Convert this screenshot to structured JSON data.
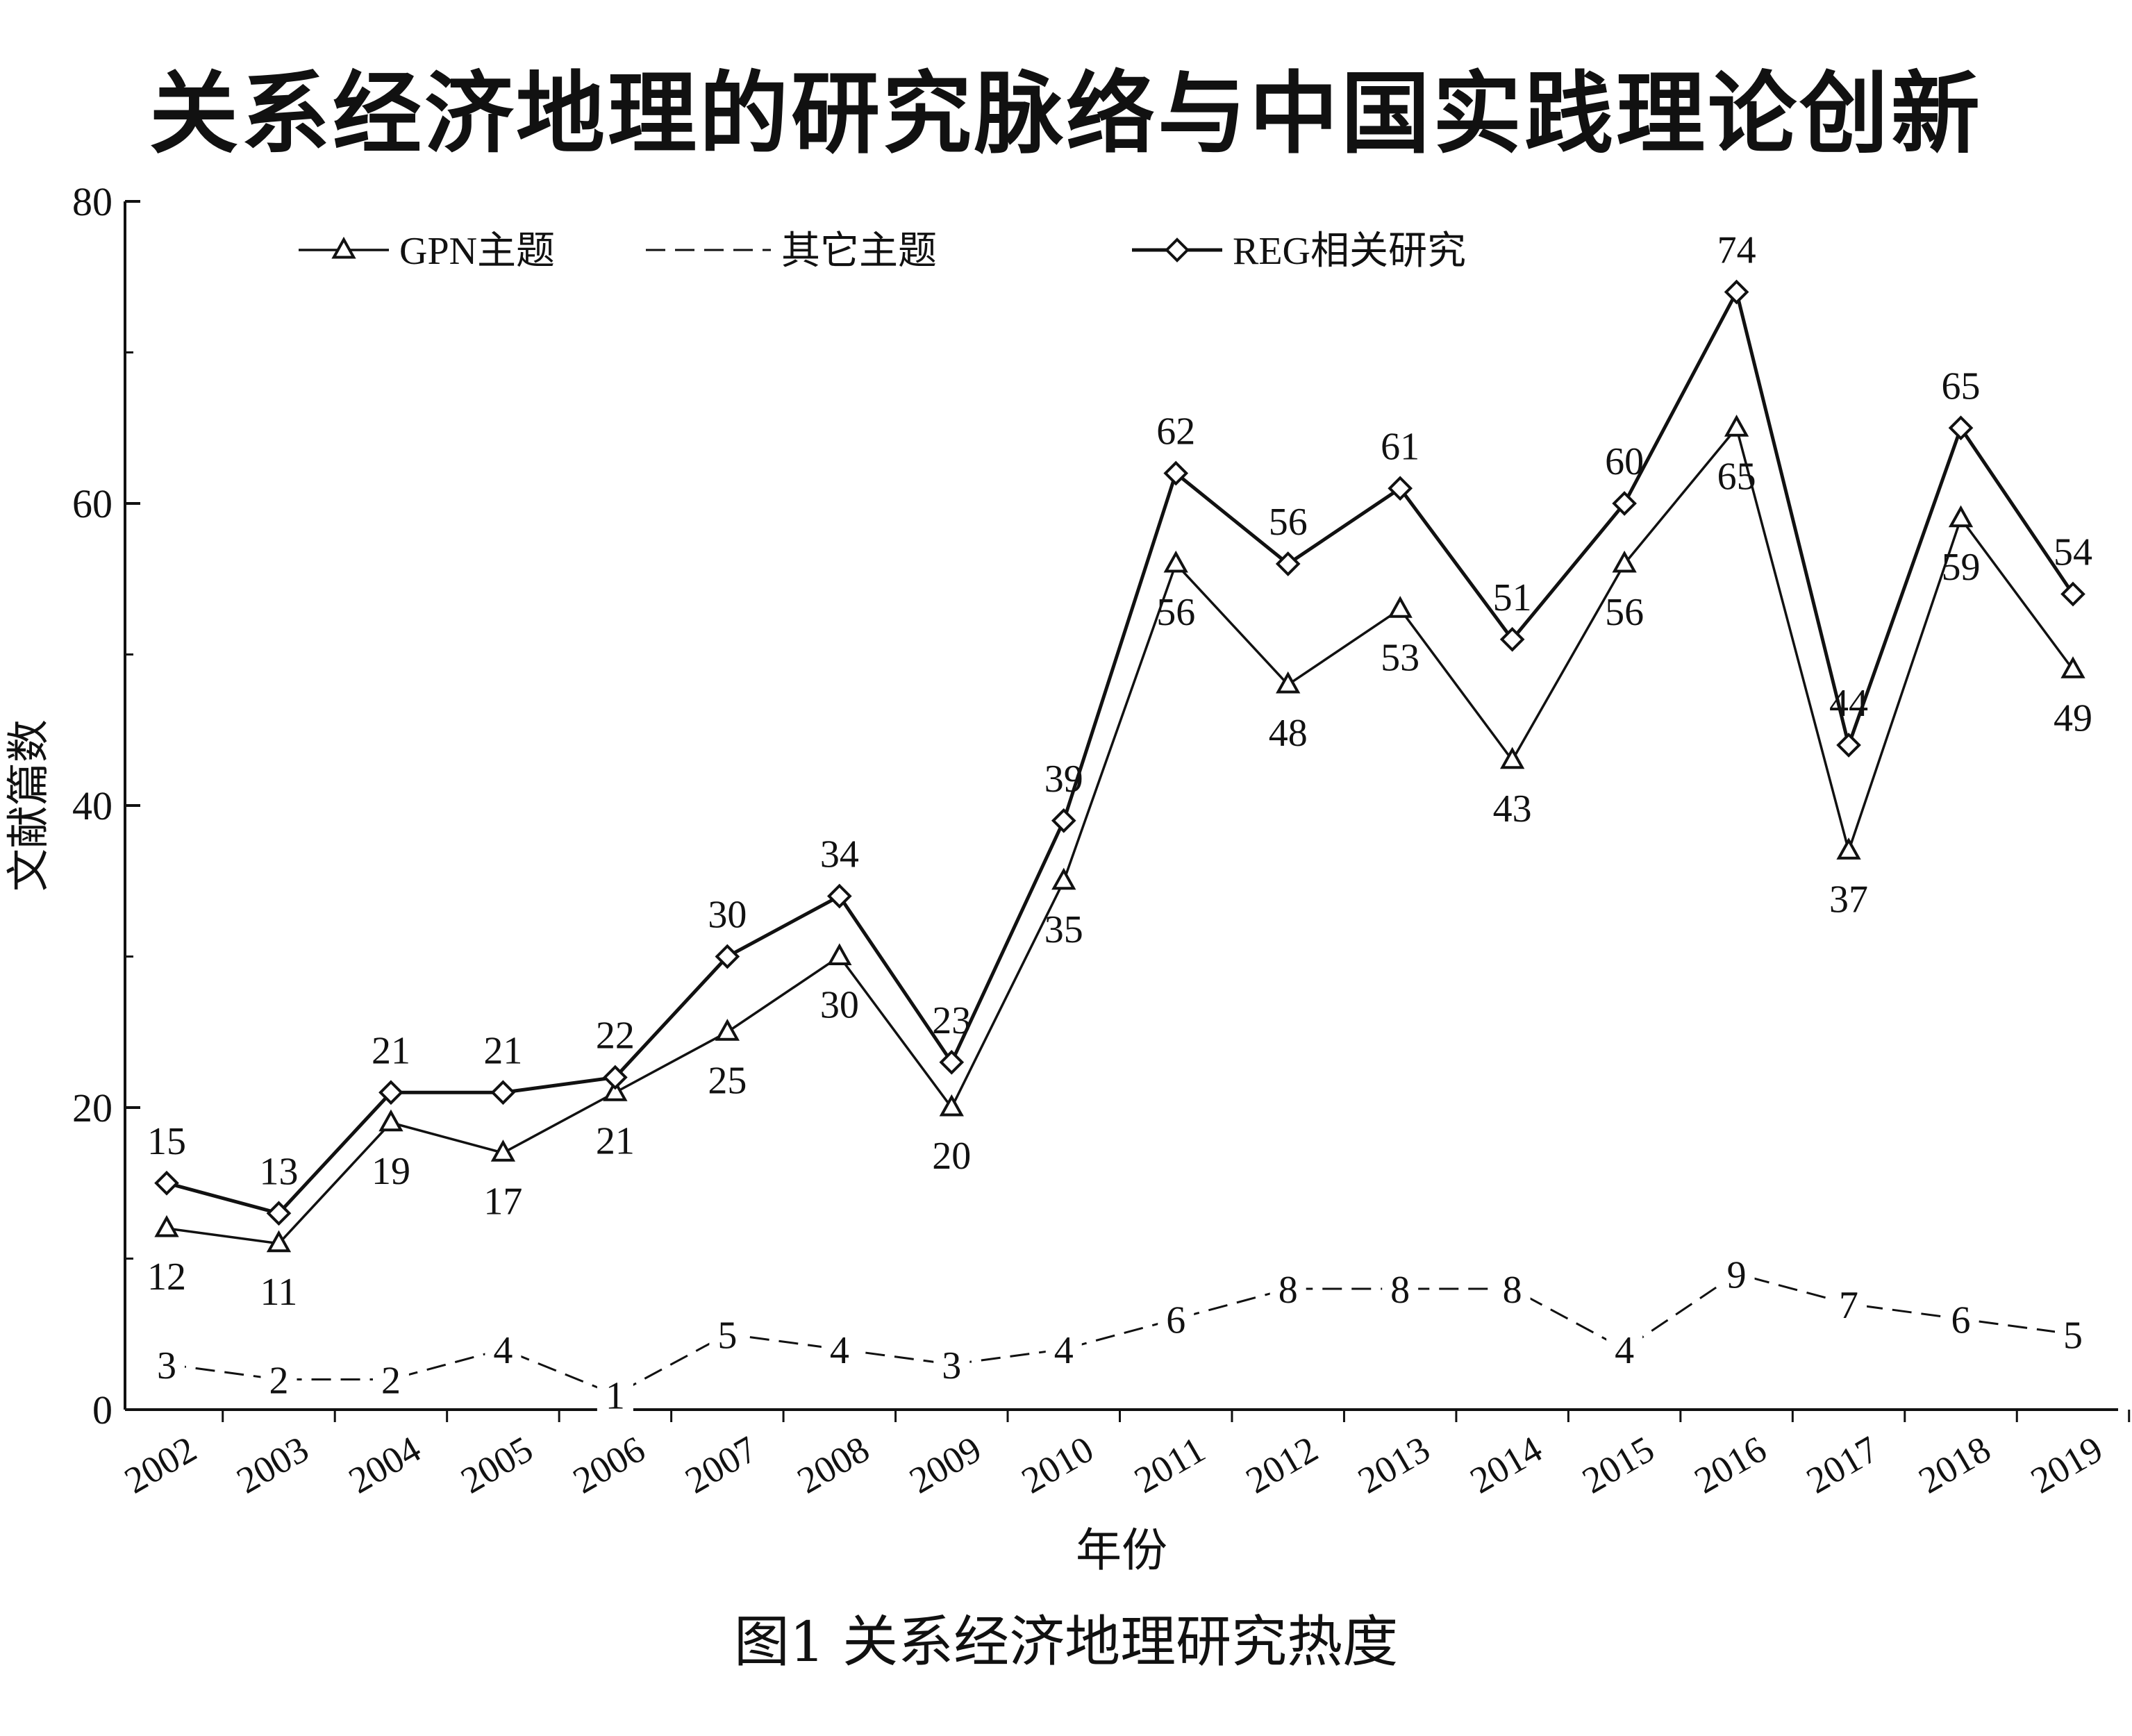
{
  "page": {
    "title": "关系经济地理的研究脉络与中国实践理论创新",
    "caption": "图1 关系经济地理研究热度"
  },
  "chart_data": {
    "type": "line",
    "xlabel": "年份",
    "ylabel": "文献篇数",
    "ylim": [
      0,
      80
    ],
    "yticks": [
      0,
      20,
      40,
      60,
      80
    ],
    "grid": false,
    "legend_position": "top-left",
    "categories": [
      "2002",
      "2003",
      "2004",
      "2005",
      "2006",
      "2007",
      "2008",
      "2009",
      "2010",
      "2011",
      "2012",
      "2013",
      "2014",
      "2015",
      "2016",
      "2017",
      "2018",
      "2019"
    ],
    "series": [
      {
        "name": "GPN主题",
        "marker": "triangle",
        "line_style": "solid",
        "values": [
          12,
          11,
          19,
          17,
          21,
          25,
          30,
          20,
          35,
          56,
          48,
          53,
          43,
          56,
          65,
          37,
          59,
          49
        ]
      },
      {
        "name": "其它主题",
        "marker": "none",
        "line_style": "dashed",
        "values": [
          3,
          2,
          2,
          4,
          1,
          5,
          4,
          3,
          4,
          6,
          8,
          8,
          8,
          4,
          9,
          7,
          6,
          5
        ]
      },
      {
        "name": "REG相关研究",
        "marker": "diamond",
        "line_style": "solid",
        "values": [
          15,
          13,
          21,
          21,
          22,
          30,
          34,
          23,
          39,
          62,
          56,
          61,
          51,
          60,
          74,
          44,
          65,
          54
        ]
      }
    ]
  },
  "colors": {
    "ink": "#111111",
    "background": "#ffffff"
  }
}
